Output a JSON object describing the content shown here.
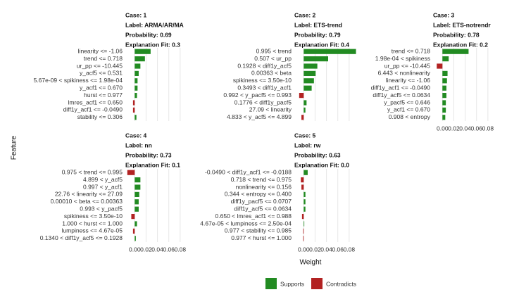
{
  "chart_data": {
    "type": "bar",
    "orientation": "horizontal",
    "xlabel": "Weight",
    "ylabel": "Feature",
    "xlim": [
      -0.014,
      0.1
    ],
    "xticks": [
      {
        "value": 0,
        "label": "0.00"
      },
      {
        "value": 0.02,
        "label": "0.02"
      },
      {
        "value": 0.04,
        "label": "0.04"
      },
      {
        "value": 0.06,
        "label": "0.06"
      },
      {
        "value": 0.08,
        "label": "0.08"
      }
    ],
    "grid": true,
    "series": [
      {
        "name": "Supports",
        "color": "#228b22"
      },
      {
        "name": "Contradicts",
        "color": "#b22222"
      }
    ],
    "panels": [
      {
        "header": [
          "Case: 1",
          "Label: ARMA/AR/MA",
          "Probability: 0.69",
          "Explanation Fit: 0.3"
        ],
        "categories": [
          "linearity <= -1.06",
          "trend <= 0.718",
          "ur_pp <= -10.445",
          "y_acf5 <= 0.531",
          "5.67e-09 < spikiness <= 1.98e-04",
          "y_acf1 <= 0.670",
          "hurst <= 0.977",
          "lmres_acf1 <= 0.650",
          "diff1y_acf1 <= -0.0490",
          "stability <= 0.306"
        ],
        "values": [
          0.028,
          0.018,
          0.01,
          0.007,
          0.005,
          0.005,
          0.004,
          -0.003,
          -0.003,
          0.003
        ]
      },
      {
        "header": [
          "Case: 2",
          "Label: ETS-trend",
          "Probability: 0.79",
          "Explanation Fit: 0.4"
        ],
        "categories": [
          "0.995 < trend",
          "0.507 < ur_pp",
          "0.1928 < diff1y_acf5",
          "0.00363 < beta",
          "spikiness <= 3.50e-10",
          "0.3493 < diff1y_acf1",
          "0.992 < y_pacf5 <= 0.993",
          "0.1776 < diff1y_pacf5",
          "27.09 < linearity",
          "4.833 < y_acf5 <= 4.899"
        ],
        "values": [
          0.092,
          0.043,
          0.024,
          0.021,
          0.018,
          0.014,
          -0.008,
          0.005,
          0.003,
          -0.004
        ]
      },
      {
        "header": [
          "Case: 3",
          "Label: ETS-notrendr",
          "Probability: 0.78",
          "Explanation Fit: 0.2"
        ],
        "categories": [
          "trend <= 0.718",
          "1.98e-04 < spikiness",
          "ur_pp <= -10.445",
          "6.443 < nonlinearity",
          "linearity <= -1.06",
          "diff1y_acf1 <= -0.0490",
          "diff1y_acf5 <= 0.0634",
          "y_pacf5 <= 0.646",
          "y_acf1 <= 0.670",
          "0.908 < entropy"
        ],
        "values": [
          0.046,
          0.011,
          -0.01,
          0.009,
          0.008,
          0.007,
          0.007,
          0.006,
          0.006,
          0.005
        ]
      },
      {
        "header": [
          "Case: 4",
          "Label: nn",
          "Probability: 0.73",
          "Explanation Fit: 0.1"
        ],
        "categories": [
          "0.975 < trend <= 0.995",
          "4.899 < y_acf5",
          "0.997 < y_acf1",
          "22.76 < linearity <= 27.09",
          "0.00010 < beta <= 0.00363",
          "0.993 < y_pacf5",
          "spikiness <= 3.50e-10",
          "1.000 < hurst <= 1.000",
          "lumpiness <= 4.67e-05",
          "0.1340 < diff1y_acf5 <= 0.1928"
        ],
        "values": [
          -0.013,
          0.01,
          0.01,
          0.008,
          0.007,
          0.007,
          -0.006,
          0.004,
          -0.003,
          0.002
        ]
      },
      {
        "header": [
          "Case: 5",
          "Label: rw",
          "Probability: 0.63",
          "Explanation Fit: 0.0"
        ],
        "categories": [
          "-0.0490 < diff1y_acf1 <= -0.0188",
          "0.718 < trend <= 0.975",
          "nonlinearity <= 0.156",
          "0.344 < entropy <= 0.400",
          "diff1y_pacf5 <= 0.0707",
          "diff1y_acf5 <= 0.0634",
          "0.650 < lmres_acf1 <= 0.988",
          "4.67e-05 < lumpiness <= 2.50e-04",
          "0.977 < stability <= 0.985",
          "0.977 < hurst <= 1.000"
        ],
        "values": [
          0.007,
          -0.005,
          -0.004,
          0.003,
          0.003,
          0.003,
          -0.003,
          0.001,
          -0.001,
          -0.001
        ]
      }
    ]
  }
}
